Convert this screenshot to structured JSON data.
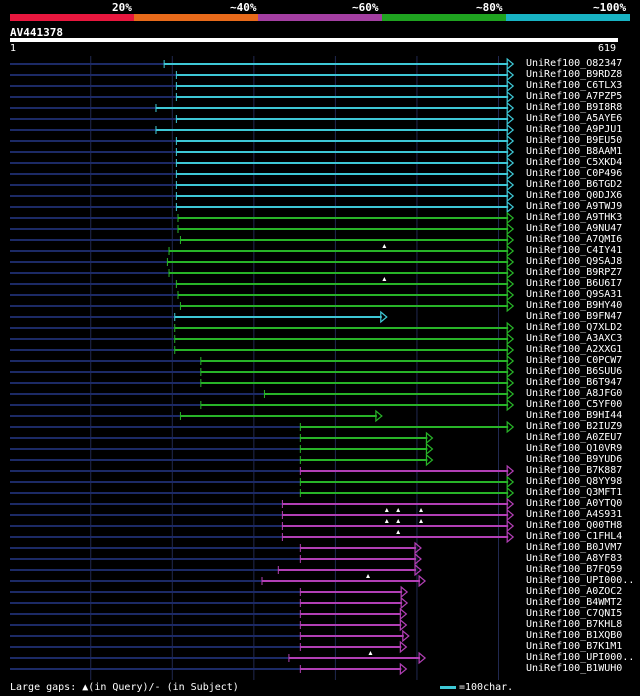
{
  "legend": {
    "labels": [
      "20%",
      "~40%",
      "~60%",
      "~80%",
      "~100%"
    ],
    "colors": [
      "#e8173e",
      "#e86a1a",
      "#a43fa2",
      "#1fa320",
      "#18b3c4"
    ]
  },
  "query": {
    "id": "AV441378",
    "start": "1",
    "end": "619",
    "length": 619
  },
  "colors": {
    "cyan": "#3ec8d6",
    "green": "#28b428",
    "magenta": "#b23fb5",
    "navy": "#1c2a66",
    "grid": "#202850"
  },
  "hits": [
    {
      "name": "UniRef100_O82347",
      "start": 190,
      "end": 618,
      "color": "cyan",
      "marks": []
    },
    {
      "name": "UniRef100_B9RDZ8",
      "start": 205,
      "end": 618,
      "color": "cyan",
      "marks": []
    },
    {
      "name": "UniRef100_C6TLX3",
      "start": 205,
      "end": 618,
      "color": "cyan",
      "marks": []
    },
    {
      "name": "UniRef100_A7PZP5",
      "start": 205,
      "end": 618,
      "color": "cyan",
      "marks": []
    },
    {
      "name": "UniRef100_B9I8R8",
      "start": 180,
      "end": 618,
      "color": "cyan",
      "marks": []
    },
    {
      "name": "UniRef100_A5AYE6",
      "start": 205,
      "end": 618,
      "color": "cyan",
      "marks": []
    },
    {
      "name": "UniRef100_A9PJU1",
      "start": 180,
      "end": 618,
      "color": "cyan",
      "marks": []
    },
    {
      "name": "UniRef100_B9EU50",
      "start": 205,
      "end": 618,
      "color": "cyan",
      "marks": []
    },
    {
      "name": "UniRef100_B8AAM1",
      "start": 205,
      "end": 618,
      "color": "cyan",
      "marks": []
    },
    {
      "name": "UniRef100_C5XKD4",
      "start": 205,
      "end": 618,
      "color": "cyan",
      "marks": []
    },
    {
      "name": "UniRef100_C0P496",
      "start": 205,
      "end": 618,
      "color": "cyan",
      "marks": []
    },
    {
      "name": "UniRef100_B6TGD2",
      "start": 205,
      "end": 618,
      "color": "cyan",
      "marks": []
    },
    {
      "name": "UniRef100_Q0DJX6",
      "start": 205,
      "end": 618,
      "color": "cyan",
      "marks": []
    },
    {
      "name": "UniRef100_A9TWJ9",
      "start": 205,
      "end": 618,
      "color": "cyan",
      "marks": []
    },
    {
      "name": "UniRef100_A9THK3",
      "start": 207,
      "end": 618,
      "color": "green",
      "marks": []
    },
    {
      "name": "UniRef100_A9NU47",
      "start": 207,
      "end": 618,
      "color": "green",
      "marks": []
    },
    {
      "name": "UniRef100_A7QMI6",
      "start": 210,
      "end": 618,
      "color": "green",
      "marks": []
    },
    {
      "name": "UniRef100_C4IY41",
      "start": 196,
      "end": 618,
      "color": "green",
      "marks": [
        460
      ]
    },
    {
      "name": "UniRef100_Q9SAJ8",
      "start": 194,
      "end": 618,
      "color": "green",
      "marks": []
    },
    {
      "name": "UniRef100_B9RPZ7",
      "start": 196,
      "end": 618,
      "color": "green",
      "marks": []
    },
    {
      "name": "UniRef100_B6U6I7",
      "start": 205,
      "end": 618,
      "color": "green",
      "marks": [
        460
      ]
    },
    {
      "name": "UniRef100_Q9SA31",
      "start": 207,
      "end": 618,
      "color": "green",
      "marks": []
    },
    {
      "name": "UniRef100_B9HY40",
      "start": 210,
      "end": 618,
      "color": "green",
      "marks": []
    },
    {
      "name": "UniRef100_B9FN47",
      "start": 203,
      "end": 463,
      "color": "cyan",
      "marks": []
    },
    {
      "name": "UniRef100_Q7XLD2",
      "start": 203,
      "end": 618,
      "color": "green",
      "marks": []
    },
    {
      "name": "UniRef100_A3AXC3",
      "start": 203,
      "end": 618,
      "color": "green",
      "marks": []
    },
    {
      "name": "UniRef100_A2XXG1",
      "start": 203,
      "end": 618,
      "color": "green",
      "marks": []
    },
    {
      "name": "UniRef100_C0PCW7",
      "start": 235,
      "end": 618,
      "color": "green",
      "marks": []
    },
    {
      "name": "UniRef100_B6SUU6",
      "start": 235,
      "end": 618,
      "color": "green",
      "marks": []
    },
    {
      "name": "UniRef100_B6T947",
      "start": 235,
      "end": 618,
      "color": "green",
      "marks": []
    },
    {
      "name": "UniRef100_A8JFG0",
      "start": 313,
      "end": 618,
      "color": "green",
      "marks": []
    },
    {
      "name": "UniRef100_C5YF00",
      "start": 235,
      "end": 618,
      "color": "green",
      "marks": []
    },
    {
      "name": "UniRef100_B9HI44",
      "start": 210,
      "end": 457,
      "color": "green",
      "marks": []
    },
    {
      "name": "UniRef100_B2IUZ9",
      "start": 357,
      "end": 618,
      "color": "green",
      "marks": []
    },
    {
      "name": "UniRef100_A0ZEU7",
      "start": 357,
      "end": 519,
      "color": "green",
      "marks": []
    },
    {
      "name": "UniRef100_Q10VR9",
      "start": 357,
      "end": 519,
      "color": "green",
      "marks": []
    },
    {
      "name": "UniRef100_B9YUD6",
      "start": 357,
      "end": 519,
      "color": "green",
      "marks": []
    },
    {
      "name": "UniRef100_B7K887",
      "start": 357,
      "end": 618,
      "color": "magenta",
      "marks": []
    },
    {
      "name": "UniRef100_Q8YY98",
      "start": 357,
      "end": 618,
      "color": "green",
      "marks": []
    },
    {
      "name": "UniRef100_Q3MFT1",
      "start": 357,
      "end": 618,
      "color": "green",
      "marks": []
    },
    {
      "name": "UniRef100_A0YTQ0",
      "start": 335,
      "end": 618,
      "color": "magenta",
      "marks": []
    },
    {
      "name": "UniRef100_A4S931",
      "start": 335,
      "end": 618,
      "color": "magenta",
      "marks": [
        463,
        477,
        505
      ]
    },
    {
      "name": "UniRef100_Q00TH8",
      "start": 335,
      "end": 618,
      "color": "magenta",
      "marks": [
        463,
        477,
        505
      ]
    },
    {
      "name": "UniRef100_C1FHL4",
      "start": 335,
      "end": 618,
      "color": "magenta",
      "marks": [
        477
      ]
    },
    {
      "name": "UniRef100_B0JVM7",
      "start": 357,
      "end": 505,
      "color": "magenta",
      "marks": []
    },
    {
      "name": "UniRef100_A8YF83",
      "start": 357,
      "end": 505,
      "color": "magenta",
      "marks": []
    },
    {
      "name": "UniRef100_B7FQ59",
      "start": 330,
      "end": 505,
      "color": "magenta",
      "marks": []
    },
    {
      "name": "UniRef100_UPI000..",
      "start": 310,
      "end": 510,
      "color": "magenta",
      "marks": [
        440
      ]
    },
    {
      "name": "UniRef100_A0ZOC2",
      "start": 357,
      "end": 488,
      "color": "magenta",
      "marks": []
    },
    {
      "name": "UniRef100_B4WMT2",
      "start": 357,
      "end": 488,
      "color": "magenta",
      "marks": []
    },
    {
      "name": "UniRef100_C7QNI5",
      "start": 357,
      "end": 487,
      "color": "magenta",
      "marks": []
    },
    {
      "name": "UniRef100_B7KHL8",
      "start": 357,
      "end": 487,
      "color": "magenta",
      "marks": []
    },
    {
      "name": "UniRef100_B1XQB0",
      "start": 357,
      "end": 490,
      "color": "magenta",
      "marks": []
    },
    {
      "name": "UniRef100_B7K1M1",
      "start": 357,
      "end": 487,
      "color": "magenta",
      "marks": []
    },
    {
      "name": "UniRef100_UPI000..",
      "start": 343,
      "end": 510,
      "color": "magenta",
      "marks": [
        443
      ]
    },
    {
      "name": "UniRef100_B1WUH0",
      "start": 357,
      "end": 487,
      "color": "magenta",
      "marks": []
    }
  ],
  "footer": {
    "gaps_label": "Large gaps:",
    "query_gap": "(in Query)/",
    "subject_gap": "- (in Subject)",
    "scale_label": "=100char."
  }
}
